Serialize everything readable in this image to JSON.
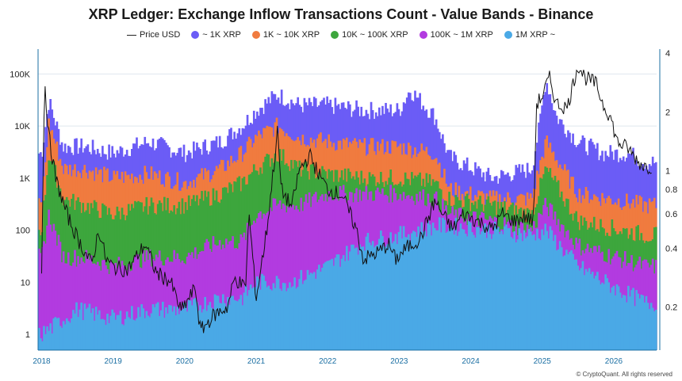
{
  "chart_data": {
    "type": "bar",
    "title": "XRP Ledger: Exchange Inflow Transactions Count - Value Bands - Binance",
    "xlabel": "",
    "ylabel": "",
    "x_tick_labels": [
      "2018",
      "2019",
      "2020",
      "2021",
      "2022",
      "2023",
      "2024",
      "2025",
      "2026"
    ],
    "y_left": {
      "scale": "log",
      "ticks": [
        "1",
        "10",
        "100",
        "1K",
        "10K",
        "100K"
      ],
      "tick_values": [
        1,
        10,
        100,
        1000,
        10000,
        100000
      ],
      "range": [
        0.5,
        300000
      ]
    },
    "y_right": {
      "scale": "log",
      "ticks": [
        "0.2",
        "0.4",
        "0.6",
        "0.8",
        "1",
        "2",
        "4"
      ],
      "tick_values": [
        0.2,
        0.4,
        0.6,
        0.8,
        1,
        2,
        4
      ],
      "range": [
        0.12,
        4.2
      ]
    },
    "grid": true,
    "legend_position": "top",
    "series": [
      {
        "name": "Price USD",
        "color": "#111111",
        "kind": "line",
        "axis": "right",
        "values": [
          [
            2018.0,
            0.3
          ],
          [
            2018.04,
            3.0
          ],
          [
            2018.1,
            1.5
          ],
          [
            2018.2,
            0.9
          ],
          [
            2018.35,
            0.6
          ],
          [
            2018.5,
            0.45
          ],
          [
            2018.7,
            0.33
          ],
          [
            2018.8,
            0.5
          ],
          [
            2018.9,
            0.35
          ],
          [
            2019.0,
            0.32
          ],
          [
            2019.2,
            0.31
          ],
          [
            2019.45,
            0.42
          ],
          [
            2019.6,
            0.3
          ],
          [
            2019.8,
            0.27
          ],
          [
            2019.95,
            0.19
          ],
          [
            2020.15,
            0.25
          ],
          [
            2020.22,
            0.15
          ],
          [
            2020.4,
            0.18
          ],
          [
            2020.6,
            0.2
          ],
          [
            2020.7,
            0.28
          ],
          [
            2020.85,
            0.25
          ],
          [
            2020.9,
            0.6
          ],
          [
            2021.0,
            0.22
          ],
          [
            2021.15,
            0.5
          ],
          [
            2021.3,
            1.6
          ],
          [
            2021.35,
            0.8
          ],
          [
            2021.5,
            0.65
          ],
          [
            2021.6,
            1.0
          ],
          [
            2021.75,
            1.2
          ],
          [
            2021.85,
            1.0
          ],
          [
            2022.0,
            0.8
          ],
          [
            2022.2,
            0.75
          ],
          [
            2022.4,
            0.5
          ],
          [
            2022.5,
            0.35
          ],
          [
            2022.7,
            0.38
          ],
          [
            2022.85,
            0.42
          ],
          [
            2022.95,
            0.35
          ],
          [
            2023.1,
            0.4
          ],
          [
            2023.3,
            0.45
          ],
          [
            2023.5,
            0.7
          ],
          [
            2023.6,
            0.6
          ],
          [
            2023.75,
            0.5
          ],
          [
            2023.9,
            0.6
          ],
          [
            2024.1,
            0.55
          ],
          [
            2024.3,
            0.5
          ],
          [
            2024.45,
            0.6
          ],
          [
            2024.6,
            0.55
          ],
          [
            2024.75,
            0.58
          ],
          [
            2024.88,
            0.55
          ],
          [
            2024.92,
            2.2
          ],
          [
            2025.0,
            2.4
          ],
          [
            2025.1,
            3.0
          ],
          [
            2025.2,
            2.2
          ],
          [
            2025.35,
            2.1
          ],
          [
            2025.5,
            3.5
          ],
          [
            2025.6,
            3.0
          ],
          [
            2025.75,
            2.8
          ],
          [
            2025.85,
            2.2
          ],
          [
            2025.95,
            1.9
          ],
          [
            2026.05,
            1.4
          ],
          [
            2026.2,
            1.3
          ],
          [
            2026.35,
            1.1
          ],
          [
            2026.45,
            1.05
          ]
        ]
      },
      {
        "name": "~ 1K XRP",
        "color": "#6b5cf6",
        "kind": "bar",
        "values": [
          [
            2018.0,
            3000
          ],
          [
            2018.1,
            30000
          ],
          [
            2018.3,
            4000
          ],
          [
            2018.6,
            4000
          ],
          [
            2019.0,
            3000
          ],
          [
            2019.5,
            5000
          ],
          [
            2020.0,
            3000
          ],
          [
            2020.5,
            5000
          ],
          [
            2020.8,
            10000
          ],
          [
            2021.0,
            20000
          ],
          [
            2021.3,
            40000
          ],
          [
            2021.6,
            25000
          ],
          [
            2022.0,
            25000
          ],
          [
            2022.5,
            20000
          ],
          [
            2023.0,
            20000
          ],
          [
            2023.15,
            50000
          ],
          [
            2023.5,
            15000
          ],
          [
            2023.7,
            2500
          ],
          [
            2024.3,
            1000
          ],
          [
            2024.85,
            1500
          ],
          [
            2024.95,
            8000
          ],
          [
            2025.05,
            80000
          ],
          [
            2025.2,
            15000
          ],
          [
            2025.5,
            5000
          ],
          [
            2025.85,
            3000
          ],
          [
            2026.2,
            3000
          ],
          [
            2026.45,
            2000
          ]
        ]
      },
      {
        "name": "1K ~ 10K XRP",
        "color": "#f07b3f",
        "kind": "bar",
        "values": [
          [
            2018.0,
            300
          ],
          [
            2018.1,
            12000
          ],
          [
            2018.3,
            1500
          ],
          [
            2018.6,
            1500
          ],
          [
            2019.0,
            1000
          ],
          [
            2019.5,
            1200
          ],
          [
            2020.0,
            800
          ],
          [
            2020.5,
            1500
          ],
          [
            2020.8,
            3000
          ],
          [
            2021.0,
            6000
          ],
          [
            2021.3,
            10000
          ],
          [
            2021.6,
            6000
          ],
          [
            2022.0,
            5000
          ],
          [
            2022.5,
            4000
          ],
          [
            2023.0,
            4000
          ],
          [
            2023.5,
            3000
          ],
          [
            2023.7,
            600
          ],
          [
            2024.3,
            400
          ],
          [
            2024.85,
            400
          ],
          [
            2025.05,
            5000
          ],
          [
            2025.5,
            500
          ],
          [
            2026.45,
            300
          ]
        ]
      },
      {
        "name": "10K ~ 100K XRP",
        "color": "#3da63d",
        "kind": "bar",
        "values": [
          [
            2018.0,
            100
          ],
          [
            2018.1,
            3000
          ],
          [
            2018.3,
            400
          ],
          [
            2018.6,
            300
          ],
          [
            2019.0,
            200
          ],
          [
            2019.5,
            300
          ],
          [
            2020.0,
            300
          ],
          [
            2020.5,
            500
          ],
          [
            2020.8,
            800
          ],
          [
            2021.0,
            1500
          ],
          [
            2021.3,
            3000
          ],
          [
            2021.6,
            1500
          ],
          [
            2022.0,
            1200
          ],
          [
            2022.5,
            1000
          ],
          [
            2023.0,
            1000
          ],
          [
            2023.5,
            800
          ],
          [
            2023.7,
            400
          ],
          [
            2024.3,
            300
          ],
          [
            2024.85,
            200
          ],
          [
            2025.05,
            1500
          ],
          [
            2025.5,
            150
          ],
          [
            2026.45,
            80
          ]
        ]
      },
      {
        "name": "100K ~ 1M XRP",
        "color": "#b23be0",
        "kind": "bar",
        "values": [
          [
            2018.0,
            30
          ],
          [
            2018.1,
            200
          ],
          [
            2018.3,
            30
          ],
          [
            2018.6,
            30
          ],
          [
            2019.0,
            20
          ],
          [
            2019.5,
            30
          ],
          [
            2020.0,
            30
          ],
          [
            2020.5,
            60
          ],
          [
            2020.8,
            60
          ],
          [
            2021.0,
            200
          ],
          [
            2021.3,
            300
          ],
          [
            2021.6,
            300
          ],
          [
            2022.0,
            500
          ],
          [
            2022.5,
            500
          ],
          [
            2023.0,
            500
          ],
          [
            2023.5,
            400
          ],
          [
            2023.7,
            200
          ],
          [
            2024.3,
            150
          ],
          [
            2024.85,
            100
          ],
          [
            2025.05,
            300
          ],
          [
            2025.5,
            50
          ],
          [
            2026.45,
            20
          ]
        ]
      },
      {
        "name": "1M XRP ~",
        "color": "#4aa9e6",
        "kind": "bar",
        "values": [
          [
            2018.0,
            1
          ],
          [
            2018.5,
            3
          ],
          [
            2019.0,
            2
          ],
          [
            2019.5,
            3
          ],
          [
            2020.0,
            3
          ],
          [
            2020.5,
            5
          ],
          [
            2020.8,
            5
          ],
          [
            2021.0,
            10
          ],
          [
            2021.5,
            10
          ],
          [
            2022.0,
            20
          ],
          [
            2022.5,
            60
          ],
          [
            2023.0,
            80
          ],
          [
            2023.5,
            120
          ],
          [
            2023.7,
            120
          ],
          [
            2024.3,
            100
          ],
          [
            2024.85,
            80
          ],
          [
            2025.05,
            100
          ],
          [
            2025.5,
            20
          ],
          [
            2026.0,
            8
          ],
          [
            2026.45,
            4
          ]
        ]
      }
    ]
  },
  "footer": {
    "credit": "© CryptoQuant. All rights reserved"
  }
}
